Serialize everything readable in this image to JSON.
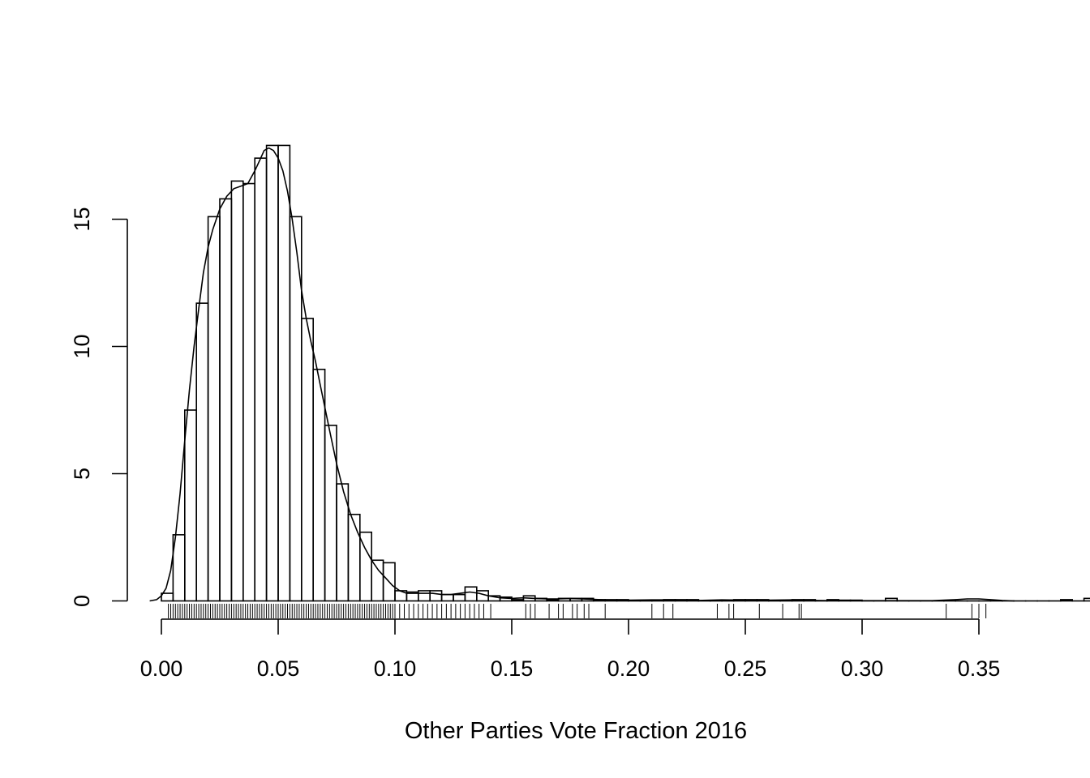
{
  "chart_data": {
    "type": "histogram",
    "title": "",
    "xlabel": "Other Parties Vote Fraction 2016",
    "ylabel": "",
    "x_ticks": [
      {
        "value": 0.0,
        "label": "0.00"
      },
      {
        "value": 0.05,
        "label": "0.05"
      },
      {
        "value": 0.1,
        "label": "0.10"
      },
      {
        "value": 0.15,
        "label": "0.15"
      },
      {
        "value": 0.2,
        "label": "0.20"
      },
      {
        "value": 0.25,
        "label": "0.25"
      },
      {
        "value": 0.3,
        "label": "0.30"
      },
      {
        "value": 0.35,
        "label": "0.35"
      }
    ],
    "y_ticks": [
      {
        "value": 0,
        "label": "0"
      },
      {
        "value": 5,
        "label": "5"
      },
      {
        "value": 10,
        "label": "10"
      },
      {
        "value": 15,
        "label": "15"
      }
    ],
    "xlim": [
      -0.005,
      0.365
    ],
    "ylim": [
      0,
      18
    ],
    "bin_width": 0.005,
    "bin_start": 0.0,
    "bin_densities": [
      0.3,
      2.6,
      7.5,
      11.7,
      15.1,
      15.8,
      16.5,
      16.4,
      17.4,
      17.9,
      17.9,
      15.1,
      11.1,
      9.1,
      6.9,
      4.6,
      3.4,
      2.7,
      1.6,
      1.5,
      0.4,
      0.35,
      0.4,
      0.4,
      0.25,
      0.25,
      0.55,
      0.4,
      0.2,
      0.15,
      0.05,
      0.2,
      0.1,
      0.05,
      0.1,
      0.1,
      0.1,
      0.05,
      0.05,
      0.05,
      0,
      0,
      0,
      0.05,
      0.05,
      0.05,
      0,
      0,
      0,
      0.05,
      0.05,
      0.05,
      0,
      0,
      0.05,
      0.05,
      0,
      0.05,
      0.03,
      0.03,
      0,
      0,
      0.1,
      0,
      0,
      0,
      0,
      0,
      0,
      0,
      0,
      0,
      0,
      0,
      0,
      0,
      0,
      0.05,
      0,
      0.1,
      0.05
    ],
    "density_curve": {
      "x": [
        -0.005,
        -0.002,
        0.0,
        0.002,
        0.004,
        0.006,
        0.008,
        0.01,
        0.012,
        0.014,
        0.016,
        0.018,
        0.02,
        0.022,
        0.025,
        0.028,
        0.031,
        0.034,
        0.037,
        0.04,
        0.042,
        0.044,
        0.046,
        0.048,
        0.05,
        0.052,
        0.054,
        0.056,
        0.058,
        0.06,
        0.062,
        0.064,
        0.066,
        0.068,
        0.07,
        0.072,
        0.075,
        0.078,
        0.081,
        0.084,
        0.087,
        0.09,
        0.093,
        0.096,
        0.099,
        0.102,
        0.105,
        0.108,
        0.112,
        0.116,
        0.12,
        0.124,
        0.128,
        0.132,
        0.136,
        0.14,
        0.145,
        0.15,
        0.155,
        0.16,
        0.165,
        0.17,
        0.175,
        0.18,
        0.185,
        0.19,
        0.195,
        0.2,
        0.21,
        0.22,
        0.23,
        0.24,
        0.25,
        0.26,
        0.27,
        0.28,
        0.29,
        0.3,
        0.31,
        0.32,
        0.33,
        0.34,
        0.345,
        0.35,
        0.355,
        0.36,
        0.365
      ],
      "y": [
        0.0,
        0.05,
        0.2,
        0.5,
        1.2,
        2.5,
        4.2,
        6.3,
        8.3,
        10.0,
        11.5,
        12.9,
        13.9,
        14.6,
        15.4,
        15.9,
        16.2,
        16.3,
        16.4,
        16.9,
        17.3,
        17.7,
        17.8,
        17.7,
        17.4,
        16.9,
        16.1,
        15.0,
        13.7,
        12.2,
        11.1,
        10.2,
        9.4,
        8.5,
        7.6,
        6.7,
        5.4,
        4.3,
        3.4,
        2.7,
        2.1,
        1.6,
        1.2,
        0.9,
        0.6,
        0.4,
        0.3,
        0.3,
        0.3,
        0.3,
        0.25,
        0.25,
        0.3,
        0.35,
        0.3,
        0.2,
        0.12,
        0.1,
        0.12,
        0.1,
        0.08,
        0.08,
        0.1,
        0.08,
        0.06,
        0.04,
        0.03,
        0.03,
        0.04,
        0.04,
        0.02,
        0.04,
        0.03,
        0.03,
        0.04,
        0.02,
        0.01,
        0.01,
        0.01,
        0.01,
        0.01,
        0.05,
        0.08,
        0.08,
        0.05,
        0.02,
        0.0
      ]
    },
    "rug_x": [
      0.003,
      0.004,
      0.005,
      0.006,
      0.007,
      0.008,
      0.009,
      0.01,
      0.011,
      0.012,
      0.013,
      0.014,
      0.015,
      0.016,
      0.017,
      0.018,
      0.019,
      0.02,
      0.021,
      0.022,
      0.023,
      0.024,
      0.025,
      0.026,
      0.027,
      0.028,
      0.029,
      0.03,
      0.031,
      0.032,
      0.033,
      0.034,
      0.035,
      0.036,
      0.037,
      0.038,
      0.039,
      0.04,
      0.041,
      0.042,
      0.043,
      0.044,
      0.045,
      0.046,
      0.047,
      0.048,
      0.049,
      0.05,
      0.051,
      0.052,
      0.053,
      0.054,
      0.055,
      0.056,
      0.057,
      0.058,
      0.059,
      0.06,
      0.061,
      0.062,
      0.063,
      0.064,
      0.065,
      0.066,
      0.067,
      0.068,
      0.069,
      0.07,
      0.071,
      0.072,
      0.073,
      0.074,
      0.075,
      0.076,
      0.077,
      0.078,
      0.079,
      0.08,
      0.081,
      0.082,
      0.083,
      0.084,
      0.085,
      0.086,
      0.087,
      0.088,
      0.089,
      0.09,
      0.091,
      0.092,
      0.093,
      0.094,
      0.095,
      0.096,
      0.097,
      0.098,
      0.099,
      0.1,
      0.102,
      0.104,
      0.106,
      0.108,
      0.11,
      0.112,
      0.114,
      0.116,
      0.118,
      0.12,
      0.122,
      0.124,
      0.126,
      0.128,
      0.13,
      0.132,
      0.134,
      0.136,
      0.138,
      0.141,
      0.156,
      0.158,
      0.16,
      0.166,
      0.17,
      0.172,
      0.176,
      0.178,
      0.181,
      0.183,
      0.19,
      0.21,
      0.215,
      0.219,
      0.238,
      0.243,
      0.245,
      0.256,
      0.266,
      0.273,
      0.274,
      0.336,
      0.347,
      0.35,
      0.353
    ]
  }
}
